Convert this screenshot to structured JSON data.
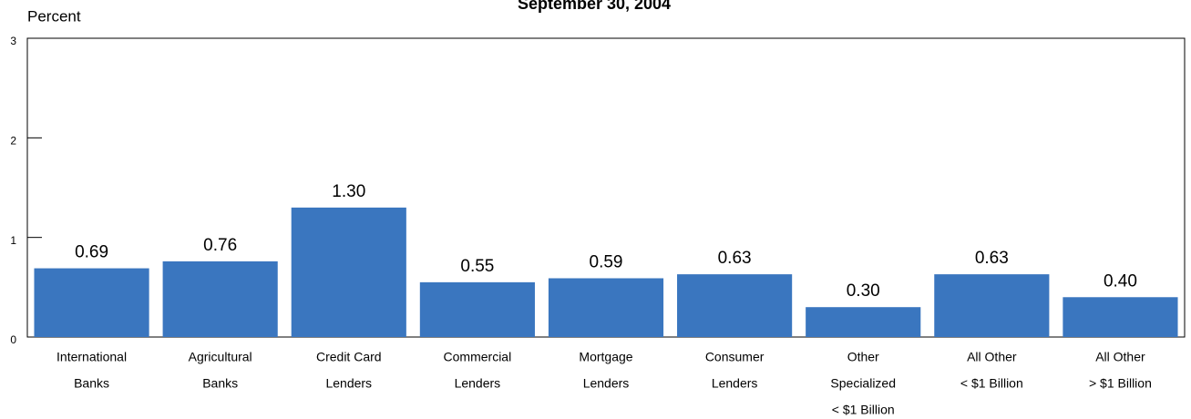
{
  "chart_data": {
    "type": "bar",
    "title": "September 30, 2004",
    "ylabel": "Percent",
    "categories": [
      [
        "International",
        "Banks"
      ],
      [
        "Agricultural",
        "Banks"
      ],
      [
        "Credit Card",
        "Lenders"
      ],
      [
        "Commercial",
        "Lenders"
      ],
      [
        "Mortgage",
        "Lenders"
      ],
      [
        "Consumer",
        "Lenders"
      ],
      [
        "Other",
        "Specialized",
        "< $1 Billion"
      ],
      [
        "All Other",
        "< $1 Billion"
      ],
      [
        "All Other",
        "> $1 Billion"
      ]
    ],
    "values": [
      0.69,
      0.76,
      1.3,
      0.55,
      0.59,
      0.63,
      0.3,
      0.63,
      0.4
    ],
    "value_labels": [
      "0.69",
      "0.76",
      "1.30",
      "0.55",
      "0.59",
      "0.63",
      "0.30",
      "0.63",
      "0.40"
    ],
    "color": "#3a76bf",
    "ylim": [
      0,
      3
    ],
    "yticks": [
      0,
      1,
      2,
      3
    ],
    "grid": false
  }
}
